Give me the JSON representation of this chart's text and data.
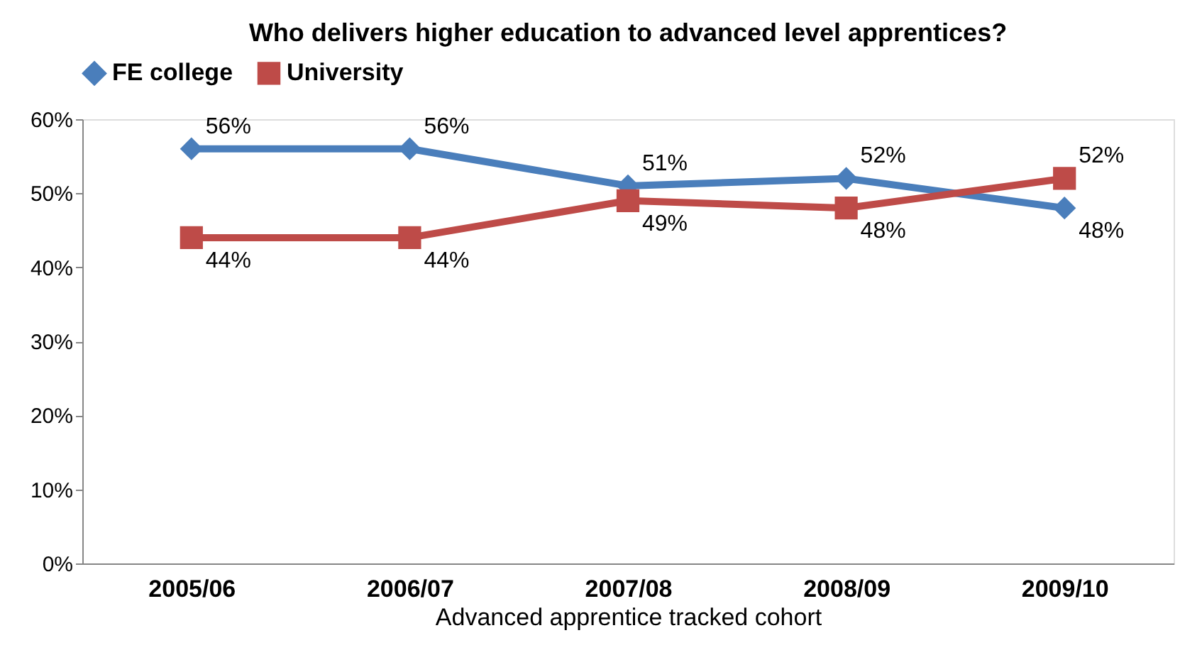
{
  "chart_data": {
    "type": "line",
    "title": "Who delivers higher education to advanced level apprentices?",
    "xlabel": "Advanced apprentice tracked cohort",
    "categories": [
      "2005/06",
      "2006/07",
      "2007/08",
      "2008/09",
      "2009/10"
    ],
    "series": [
      {
        "name": "FE college",
        "color": "#4a7ebb",
        "marker": "diamond",
        "values": [
          56,
          56,
          51,
          52,
          48
        ],
        "value_labels": [
          "56%",
          "56%",
          "51%",
          "52%",
          "48%"
        ]
      },
      {
        "name": "University",
        "color": "#be4b48",
        "marker": "square",
        "values": [
          44,
          44,
          49,
          48,
          52
        ],
        "value_labels": [
          "44%",
          "44%",
          "49%",
          "48%",
          "52%"
        ]
      }
    ],
    "ylim": [
      0,
      60
    ],
    "yticks": [
      {
        "value": 0,
        "label": "0%"
      },
      {
        "value": 10,
        "label": "10%"
      },
      {
        "value": 20,
        "label": "20%"
      },
      {
        "value": 30,
        "label": "30%"
      },
      {
        "value": 40,
        "label": "40%"
      },
      {
        "value": 50,
        "label": "50%"
      },
      {
        "value": 60,
        "label": "60%"
      }
    ],
    "grid": false,
    "legend": "top",
    "line_style": "solid"
  }
}
